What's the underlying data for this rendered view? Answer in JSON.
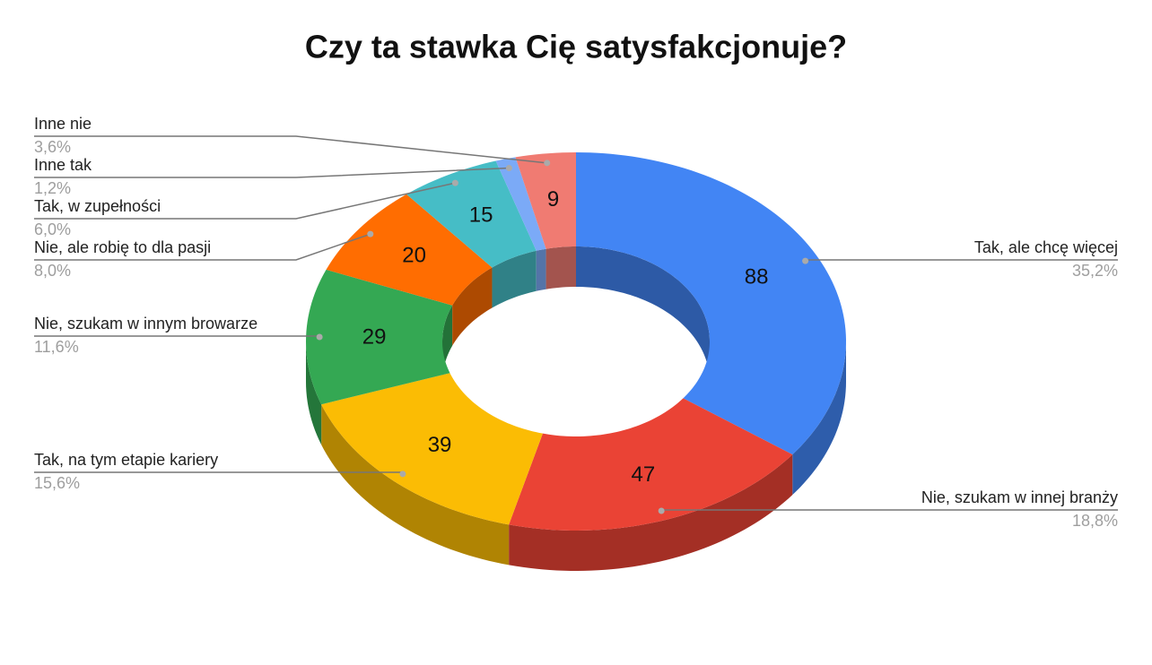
{
  "chart_data": {
    "type": "donut3d",
    "title": "Czy ta stawka Cię satysfakcjonuje?",
    "categories": [
      "Tak, ale chcę więcej",
      "Nie, szukam w innej branży",
      "Tak, na tym etapie kariery",
      "Nie, szukam w innym browarze",
      "Nie, ale robię to dla pasji",
      "Tak, w zupełności",
      "Inne tak",
      "Inne nie"
    ],
    "values": [
      88,
      47,
      39,
      29,
      20,
      15,
      3,
      9
    ],
    "percent_labels": [
      "35,2%",
      "18,8%",
      "15,6%",
      "11,6%",
      "8,0%",
      "6,0%",
      "1,2%",
      "3,6%"
    ],
    "colors": [
      "#4285f4",
      "#ea4335",
      "#fbbc04",
      "#34a853",
      "#ff6d01",
      "#46bdc6",
      "#7baaf7",
      "#f07b72"
    ]
  }
}
